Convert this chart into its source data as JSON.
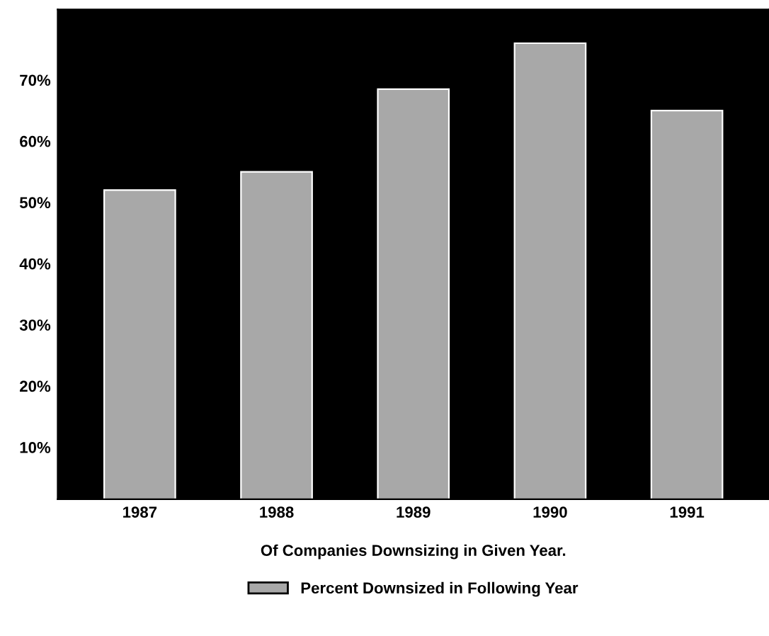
{
  "chart_data": {
    "type": "bar",
    "categories": [
      "1987",
      "1988",
      "1989",
      "1990",
      "1991"
    ],
    "series": [
      {
        "name": "Percent Downsized in Following Year",
        "color": "#a8a8a8",
        "values": [
          52,
          55,
          68.5,
          76,
          65
        ]
      }
    ],
    "xlabel": "Of Companies Downsizing in Given Year.",
    "ylim": [
      1.5,
      81.5
    ],
    "yticks": [
      {
        "value": 10,
        "label": "10%"
      },
      {
        "value": 20,
        "label": "20%"
      },
      {
        "value": 30,
        "label": "30%"
      },
      {
        "value": 40,
        "label": "40%"
      },
      {
        "value": 50,
        "label": "50%"
      },
      {
        "value": 60,
        "label": "60%"
      },
      {
        "value": 70,
        "label": "70%"
      }
    ],
    "legend": "bottom",
    "grid": false
  }
}
